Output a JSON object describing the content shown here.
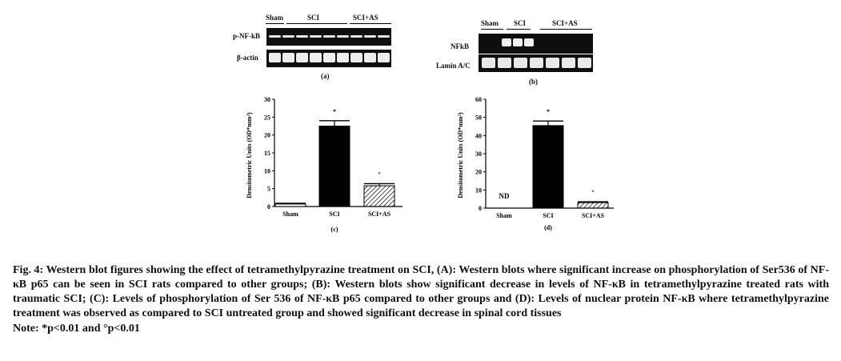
{
  "blot_a": {
    "groups": [
      "Sham",
      "SCI",
      "SCI+AS"
    ],
    "rows": [
      "p-NF-kB",
      "β-actin"
    ],
    "panel": "(a)"
  },
  "blot_b": {
    "groups": [
      "Sham",
      "SCI",
      "SCI+AS"
    ],
    "rows": [
      "NFkB",
      "Lamin A/C"
    ],
    "panel": "(b)"
  },
  "chart_data": [
    {
      "type": "bar",
      "panel": "(c)",
      "categories": [
        "Sham",
        "SCI",
        "SCI+AS"
      ],
      "values": [
        0.7,
        22.5,
        5.8
      ],
      "errors": [
        0.2,
        1.5,
        0.6
      ],
      "markers": [
        "",
        "*",
        "°"
      ],
      "ylabel": "Densitometric Units (OD*mm²)",
      "ylim": [
        0,
        30
      ],
      "yticks": [
        0,
        5,
        10,
        15,
        20,
        25,
        30
      ],
      "fills": [
        "#ffffff",
        "#000000",
        "hatch"
      ]
    },
    {
      "type": "bar",
      "panel": "(d)",
      "categories": [
        "Sham",
        "SCI",
        "SCI+AS"
      ],
      "values": [
        0,
        45.5,
        3.0
      ],
      "errors": [
        0,
        2.5,
        0.5
      ],
      "markers": [
        "",
        "*",
        "°"
      ],
      "value_labels": [
        "ND",
        "",
        ""
      ],
      "ylabel": "Densitometric Units (OD*mm²)",
      "ylim": [
        0,
        60
      ],
      "yticks": [
        0,
        10,
        20,
        30,
        40,
        50,
        60
      ],
      "fills": [
        "#ffffff",
        "#000000",
        "hatch"
      ]
    }
  ],
  "caption": "Fig. 4: Western blot figures showing the effect of tetramethylpyrazine treatment on SCI, (A): Western blots where significant increase on phosphorylation of Ser536 of NF-κB p65 can be seen in SCI rats compared to other groups; (B): Western blots show significant decrease in levels of NF-κB in tetramethylpyrazine treated rats with traumatic SCI; (C): Levels of phosphorylation of Ser 536 of NF-κB p65 compared to other groups and (D): Levels of nuclear protein NF-κB where tetramethylpyrazine treatment was observed as compared to SCI untreated group and showed significant decrease in spinal cord tissues",
  "note": "Note: *p<0.01 and °p<0.01"
}
